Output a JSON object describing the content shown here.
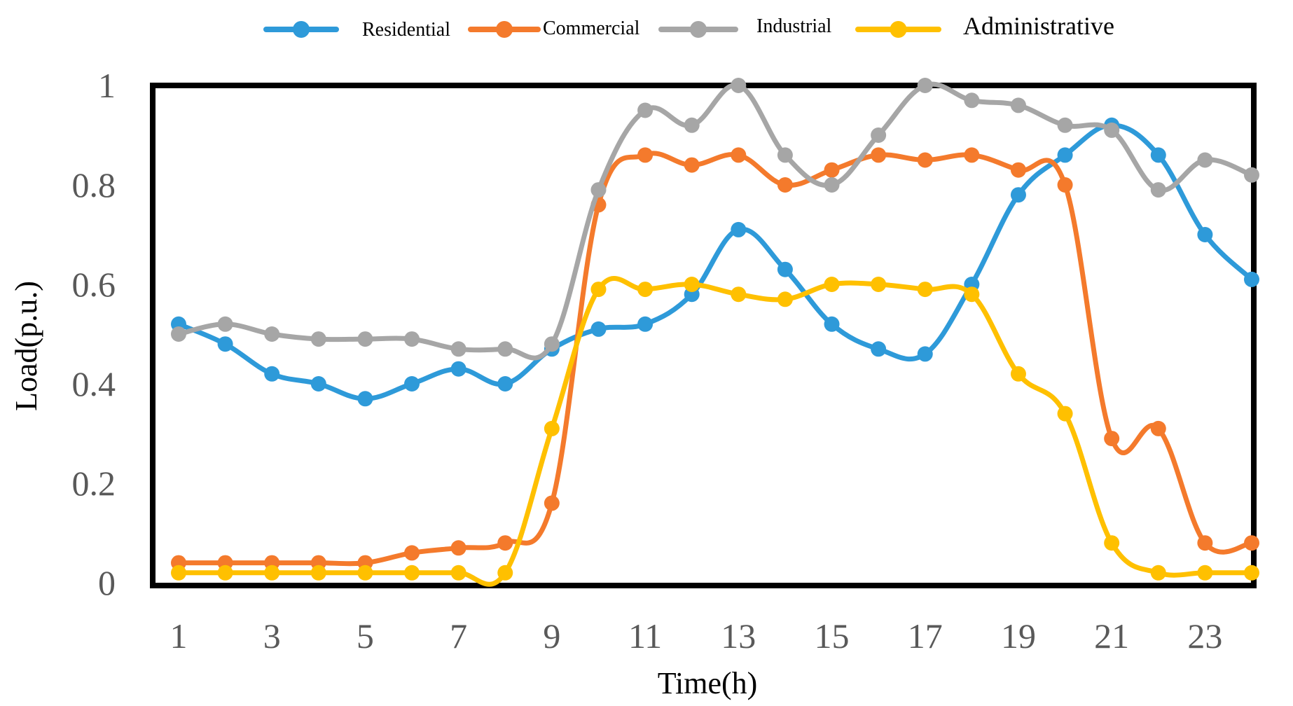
{
  "chart_data": {
    "type": "line",
    "title": "",
    "xlabel": "Time(h)",
    "ylabel": "Load(p.u.)",
    "x": [
      1,
      2,
      3,
      4,
      5,
      6,
      7,
      8,
      9,
      10,
      11,
      12,
      13,
      14,
      15,
      16,
      17,
      18,
      19,
      20,
      21,
      22,
      23,
      24
    ],
    "xlim": [
      1,
      24
    ],
    "ylim": [
      0,
      1
    ],
    "x_ticks": [
      "1",
      "3",
      "5",
      "7",
      "9",
      "11",
      "13",
      "15",
      "17",
      "19",
      "21",
      "23"
    ],
    "x_tick_values": [
      1,
      3,
      5,
      7,
      9,
      11,
      13,
      15,
      17,
      19,
      21,
      23
    ],
    "y_ticks": [
      "0",
      "0.2",
      "0.4",
      "0.6",
      "0.8",
      "1"
    ],
    "y_tick_values": [
      0,
      0.2,
      0.4,
      0.6,
      0.8,
      1
    ],
    "grid": false,
    "legend_position": "top",
    "series": [
      {
        "name": "Residential",
        "color": "#2E9AD9",
        "values": [
          0.52,
          0.48,
          0.42,
          0.4,
          0.37,
          0.4,
          0.43,
          0.4,
          0.47,
          0.51,
          0.52,
          0.58,
          0.71,
          0.63,
          0.52,
          0.47,
          0.46,
          0.6,
          0.78,
          0.86,
          0.92,
          0.86,
          0.7,
          0.61
        ]
      },
      {
        "name": "Commercial",
        "color": "#F47A2C",
        "values": [
          0.04,
          0.04,
          0.04,
          0.04,
          0.04,
          0.06,
          0.07,
          0.08,
          0.16,
          0.76,
          0.86,
          0.84,
          0.86,
          0.8,
          0.83,
          0.86,
          0.85,
          0.86,
          0.83,
          0.8,
          0.29,
          0.31,
          0.08,
          0.08
        ]
      },
      {
        "name": "Industrial",
        "color": "#A6A6A6",
        "values": [
          0.5,
          0.52,
          0.5,
          0.49,
          0.49,
          0.49,
          0.47,
          0.47,
          0.48,
          0.79,
          0.95,
          0.92,
          1.0,
          0.86,
          0.8,
          0.9,
          1.0,
          0.97,
          0.96,
          0.92,
          0.91,
          0.79,
          0.85,
          0.82
        ]
      },
      {
        "name": "Administrative",
        "color": "#FFC000",
        "values": [
          0.02,
          0.02,
          0.02,
          0.02,
          0.02,
          0.02,
          0.02,
          0.02,
          0.31,
          0.59,
          0.59,
          0.6,
          0.58,
          0.57,
          0.6,
          0.6,
          0.59,
          0.58,
          0.42,
          0.34,
          0.08,
          0.02,
          0.02,
          0.02
        ]
      }
    ]
  }
}
